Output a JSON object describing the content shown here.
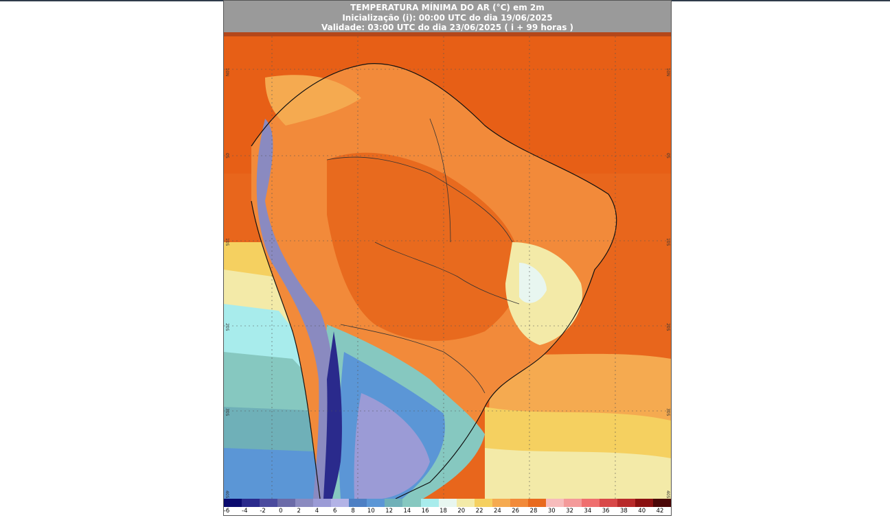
{
  "header": {
    "title": "TEMPERATURA MÍNIMA DO AR (°C) em 2m",
    "init": "Inicialização (i): 00:00 UTC do dia 19/06/2025",
    "valid": "Validade: 03:00 UTC do dia 23/06/2025 ( i + 99 horas )"
  },
  "lat_labels": {
    "l10n": "10N",
    "l0": "0S",
    "l10s": "10S",
    "l20s": "20S",
    "l30s": "30S",
    "l40s": "40S"
  },
  "legend": {
    "ticks": [
      "-6",
      "-4",
      "-2",
      "0",
      "2",
      "4",
      "6",
      "8",
      "10",
      "12",
      "14",
      "16",
      "18",
      "20",
      "22",
      "24",
      "26",
      "28",
      "30",
      "32",
      "34",
      "36",
      "38",
      "40",
      "42"
    ],
    "colors": [
      "#0a0a6e",
      "#2a2a8c",
      "#4b4b9e",
      "#6b6ba8",
      "#8a8ac0",
      "#9b9bd6",
      "#b3b3e6",
      "#4d7fc4",
      "#5b96d6",
      "#6fb0b8",
      "#86c8c0",
      "#a8ecec",
      "#e8f6f0",
      "#f3eaa8",
      "#f5d060",
      "#f5aa50",
      "#f28a3a",
      "#e86a1e",
      "#f7bcbc",
      "#f49a9a",
      "#ef6f6f",
      "#d84848",
      "#b82a2a",
      "#8a1010",
      "#4a0606"
    ]
  }
}
